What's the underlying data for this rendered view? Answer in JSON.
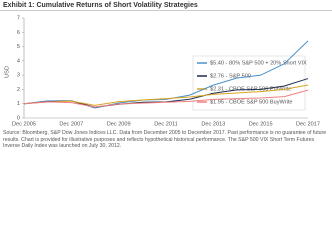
{
  "chart_data": {
    "type": "line",
    "title": "Exhibit 1: Cumulative Returns of Short Volatility Strategies",
    "y_label": "USD",
    "categories": [
      "Dec 2005",
      null,
      "Dec 2007",
      null,
      "Dec 2009",
      null,
      "Dec 2011",
      null,
      "Dec 2013",
      null,
      "Dec 2015",
      null,
      "Dec 2017"
    ],
    "series": [
      {
        "name": "$5.40 - 80% S&P 500 + 20% Short VIX",
        "color": "#4a90c8",
        "values": [
          1,
          1.2,
          1.2,
          0.7,
          1.05,
          1.25,
          1.3,
          1.6,
          2.3,
          2.8,
          3.0,
          3.8,
          5.4
        ]
      },
      {
        "name": "$2.76 - S&P 500",
        "color": "#1f2d4d",
        "values": [
          1,
          1.15,
          1.2,
          0.76,
          0.96,
          1.1,
          1.13,
          1.31,
          1.73,
          1.97,
          2.0,
          2.24,
          2.76
        ]
      },
      {
        "name": "$2.31 - CBOE S&P 500 PutWrite",
        "color": "#d9a520",
        "values": [
          1,
          1.12,
          1.18,
          0.88,
          1.15,
          1.26,
          1.36,
          1.47,
          1.65,
          1.75,
          1.85,
          2.0,
          2.31
        ]
      },
      {
        "name": "$1.95 - CBOE S&P 500 BuyWrite",
        "color": "#f08080",
        "values": [
          1,
          1.13,
          1.08,
          0.77,
          0.98,
          1.04,
          1.1,
          1.16,
          1.3,
          1.36,
          1.4,
          1.5,
          1.95
        ]
      }
    ],
    "ylim": [
      0,
      7
    ],
    "yticks": [
      0,
      1,
      2,
      3,
      4,
      5,
      6,
      7
    ],
    "grid": false,
    "source": "Source: Bloomberg, S&P Dow Jones Indices LLC. Data from December 2005 to December 2017. Past performance is no guarantee of future results. Chart is provided for illustrative purposes and reflects hypothetical historical performance. The S&P 500 VIX Short Term Futures Inverse Daily Index was launched on July 30, 2012."
  }
}
